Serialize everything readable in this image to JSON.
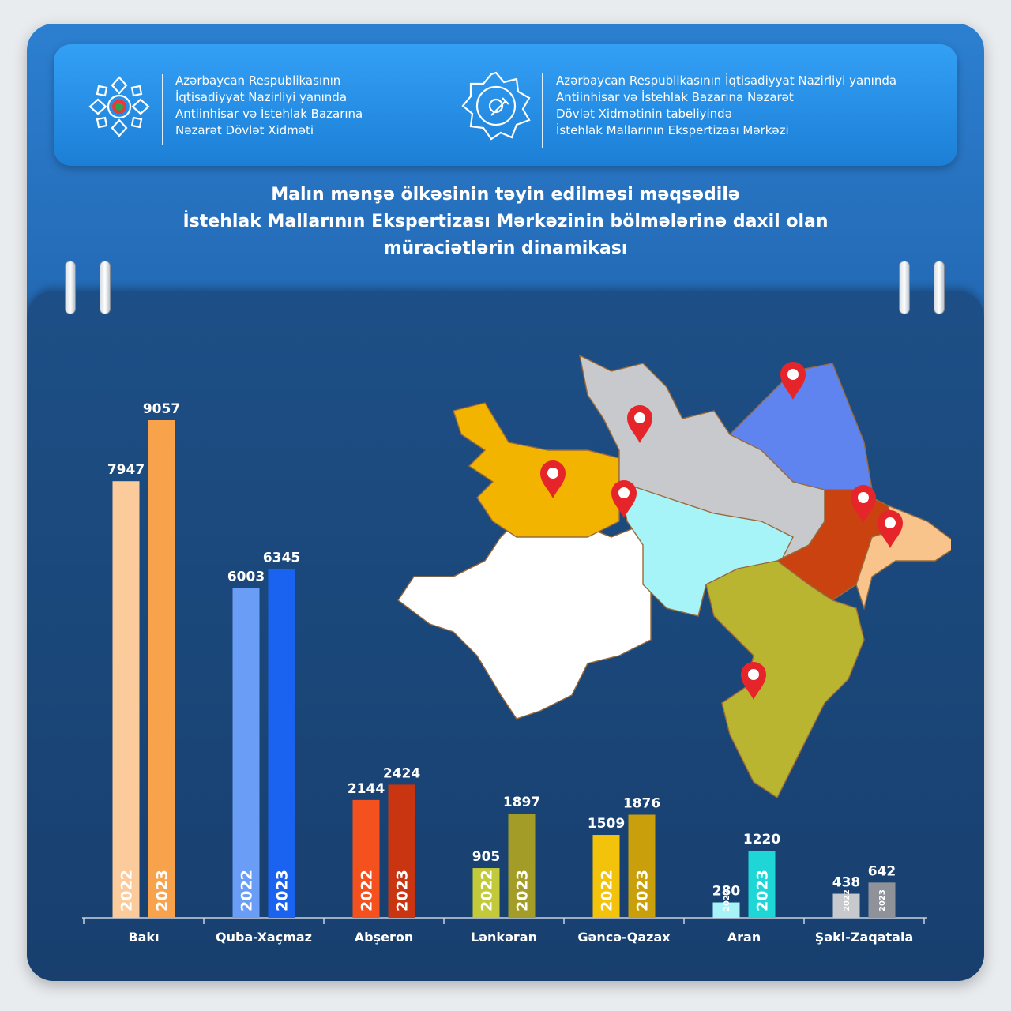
{
  "header": {
    "left_org_lines": [
      "Azərbaycan Respublikasının",
      "İqtisadiyyat Nazirliyi yanında",
      "Antiinhisar və İstehlak Bazarına",
      "Nəzarət Dövlət Xidməti"
    ],
    "right_org_lines": [
      "Azərbaycan Respublikasının İqtisadiyyat Nazirliyi yanında",
      "Antiinhisar və İstehlak Bazarına Nəzarət",
      "Dövlət Xidmətinin tabeliyində",
      "İstehlak Mallarının Ekspertizası Mərkəzi"
    ],
    "left_logo_icon": "ornament-emblem-icon",
    "right_logo_icon": "gear-seal-icon"
  },
  "title_lines": [
    "Malın mənşə ölkəsinin təyin edilməsi məqsədilə",
    "İstehlak Mallarının Ekspertizası Mərkəzinin bölmələrinə daxil olan",
    "müraciətlərin dinamikası"
  ],
  "map": {
    "icon": "azerbaijan-regions-map-icon",
    "pin_icon": "map-pin-icon",
    "pin_count": 7
  },
  "chart_data": {
    "type": "bar",
    "categories": [
      "Bakı",
      "Quba-Xaçmaz",
      "Abşeron",
      "Lənkəran",
      "Gəncə-Qazax",
      "Aran",
      "Şəki-Zaqatala"
    ],
    "series": [
      {
        "name": "2022",
        "values": [
          7947,
          6003,
          2144,
          905,
          1509,
          280,
          438
        ],
        "colors": [
          "#fccb9c",
          "#6a9df5",
          "#f4511e",
          "#c3ca3a",
          "#f3c20b",
          "#a7f3f7",
          "#c7c9cc"
        ]
      },
      {
        "name": "2023",
        "values": [
          9057,
          6345,
          2424,
          1897,
          1876,
          1220,
          642
        ],
        "colors": [
          "#f9a24c",
          "#1a63f0",
          "#c93510",
          "#a39d28",
          "#c9a00c",
          "#1fd6d6",
          "#8f9399"
        ]
      }
    ],
    "value_labels": {
      "2022": [
        "7947",
        "6003",
        "2144",
        "905",
        "1509",
        "280",
        "438"
      ],
      "2023": [
        "9057",
        "6345",
        "2424",
        "1897",
        "1876",
        "1220",
        "642"
      ]
    },
    "ylim": [
      0,
      9057
    ],
    "xlabel": "",
    "ylabel": "",
    "legend": "none"
  }
}
